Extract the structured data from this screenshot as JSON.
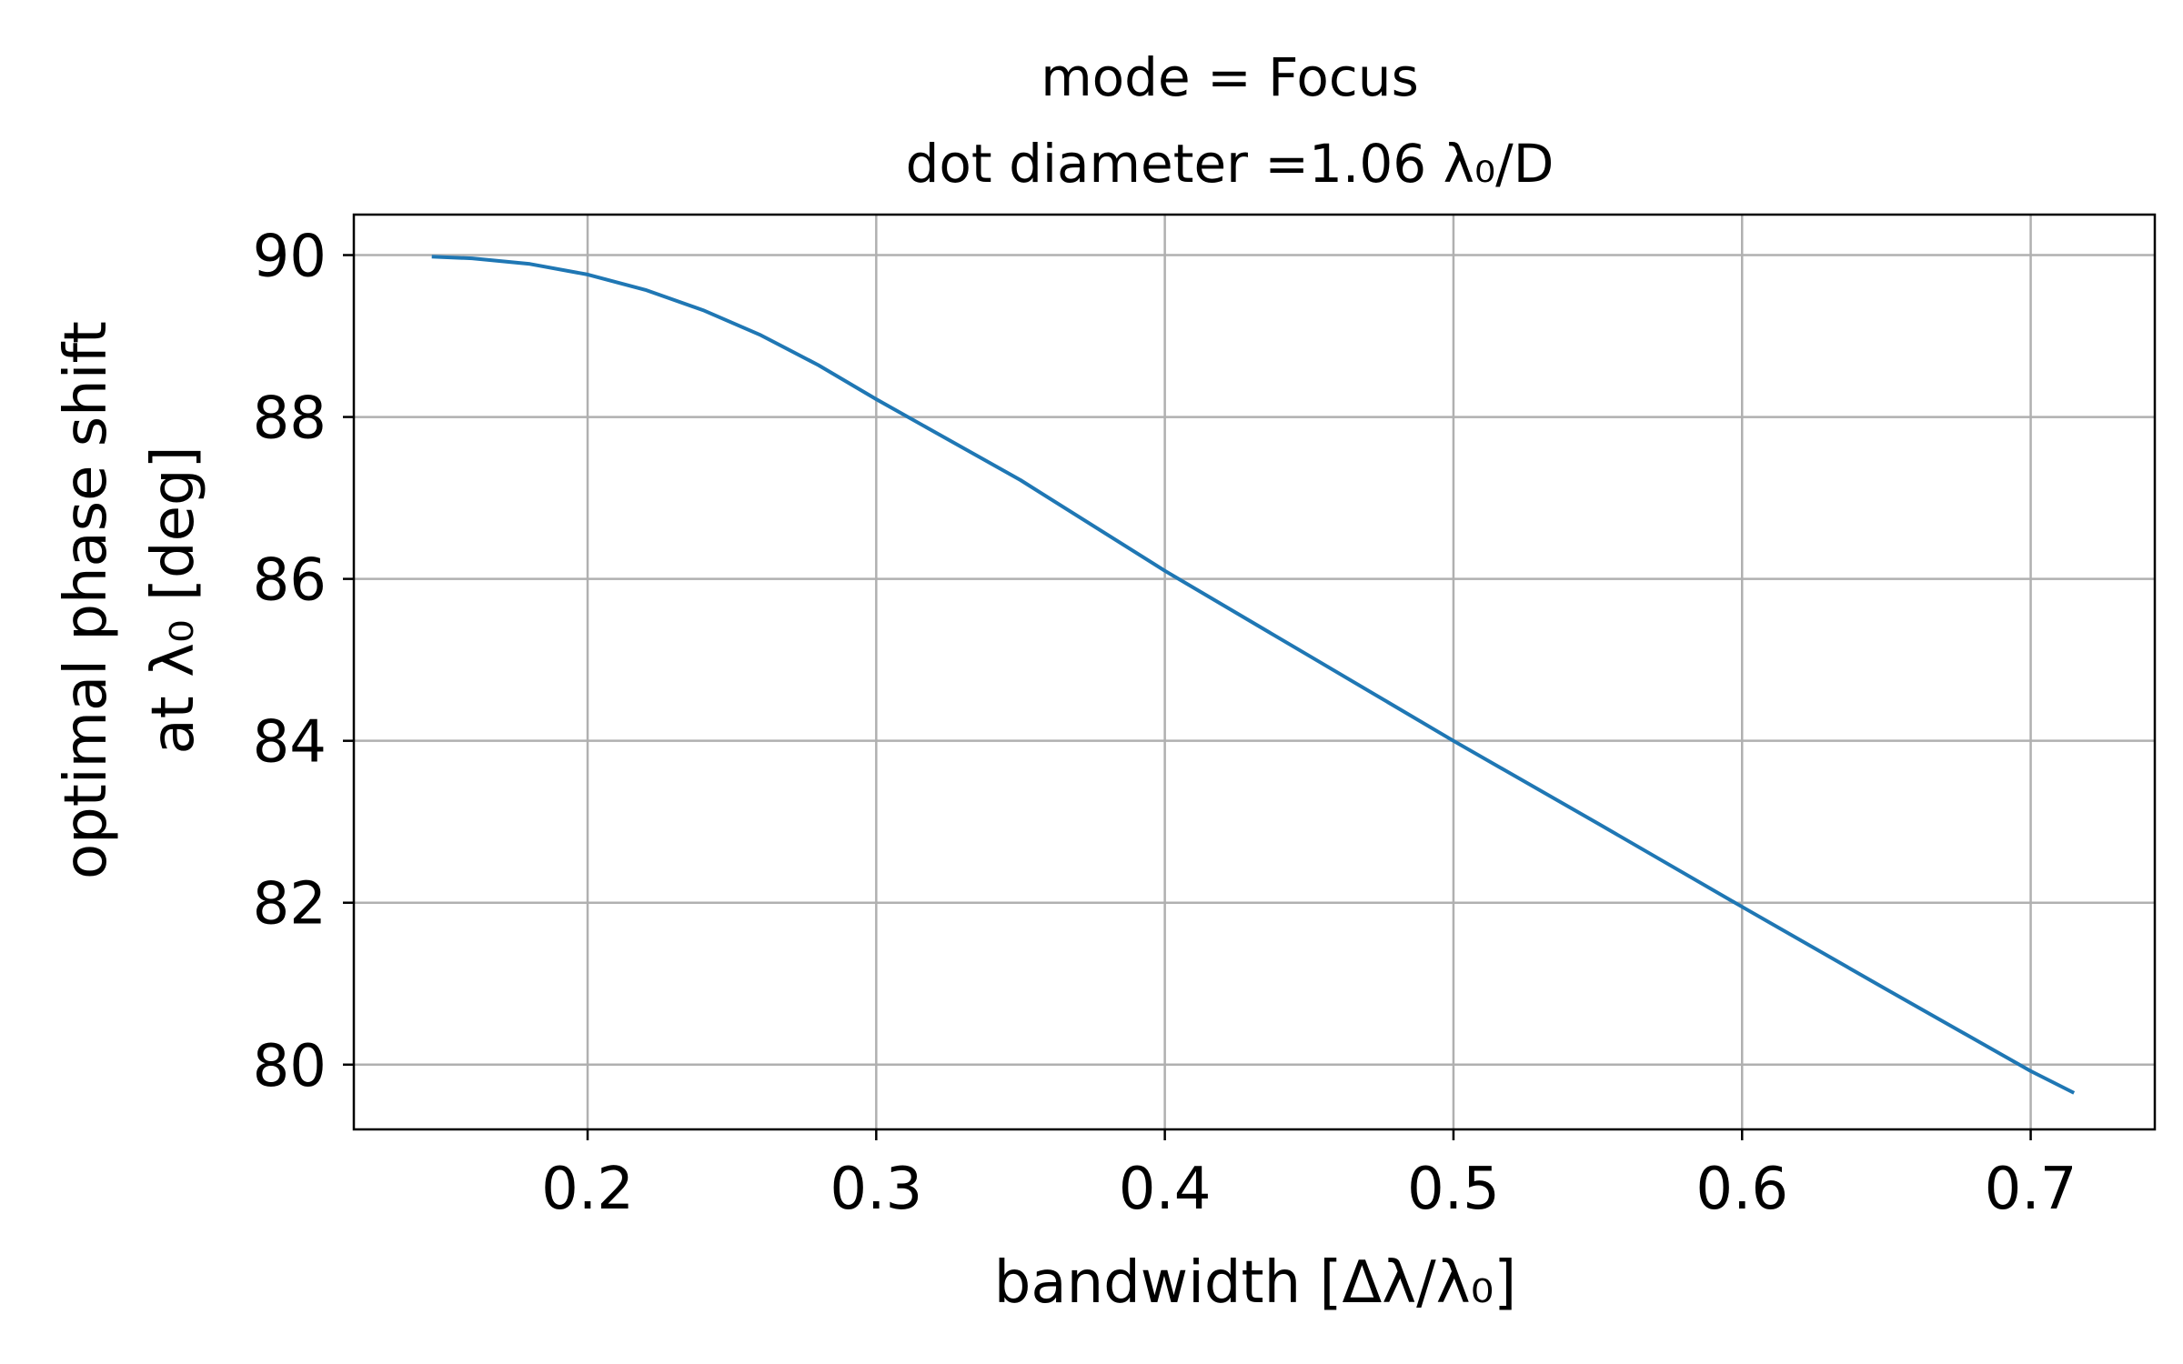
{
  "chart_data": {
    "type": "line",
    "title_line1": "mode = Focus",
    "title_line2": "dot diameter =1.06 λ₀/D",
    "xlabel": "bandwidth [Δλ/λ₀]",
    "ylabel_line1": "optimal phase shift",
    "ylabel_line2": "at λ₀ [deg]",
    "xlim": [
      0.119,
      0.743
    ],
    "ylim": [
      79.2,
      90.5
    ],
    "xticks": [
      0.2,
      0.3,
      0.4,
      0.5,
      0.6,
      0.7
    ],
    "xtick_labels": [
      "0.2",
      "0.3",
      "0.4",
      "0.5",
      "0.6",
      "0.7"
    ],
    "yticks": [
      80,
      82,
      84,
      86,
      88,
      90
    ],
    "ytick_labels": [
      "80",
      "82",
      "84",
      "86",
      "88",
      "90"
    ],
    "grid": true,
    "series": [
      {
        "color": "#1f77b4",
        "x": [
          0.146,
          0.16,
          0.18,
          0.2,
          0.22,
          0.24,
          0.26,
          0.28,
          0.3,
          0.32,
          0.35,
          0.4,
          0.45,
          0.5,
          0.55,
          0.6,
          0.65,
          0.7,
          0.715
        ],
        "y": [
          89.98,
          89.96,
          89.89,
          89.76,
          89.57,
          89.32,
          89.01,
          88.64,
          88.22,
          87.82,
          87.22,
          86.1,
          85.05,
          84.0,
          82.98,
          81.95,
          80.93,
          79.92,
          79.65
        ]
      }
    ]
  }
}
